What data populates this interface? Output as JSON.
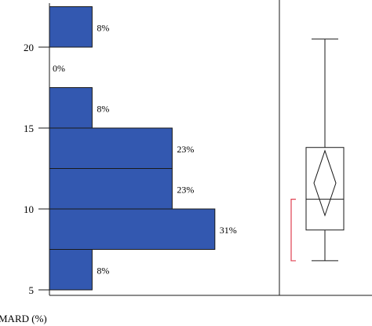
{
  "chart_data": {
    "type": "bar",
    "orientation": "horizontal",
    "ylabel": "MARD (%)",
    "ylim": [
      5,
      22.7
    ],
    "yticks": [
      5,
      10,
      15,
      20
    ],
    "bins": [
      {
        "from": 5,
        "to": 7.5,
        "percent": 8,
        "label": "8%"
      },
      {
        "from": 7.5,
        "to": 10,
        "percent": 31,
        "label": "31%"
      },
      {
        "from": 10,
        "to": 12.5,
        "percent": 23,
        "label": "23%"
      },
      {
        "from": 12.5,
        "to": 15,
        "percent": 23,
        "label": "23%"
      },
      {
        "from": 15,
        "to": 17.5,
        "percent": 8,
        "label": "8%"
      },
      {
        "from": 17.5,
        "to": 20,
        "percent": 0,
        "label": "0%"
      },
      {
        "from": 20,
        "to": 22.5,
        "percent": 8,
        "label": "8%"
      }
    ],
    "boxplot": {
      "whisker_low": 6.8,
      "q1": 8.7,
      "median": 10.6,
      "q3": 13.8,
      "whisker_high": 20.5,
      "mean_diamond": {
        "low": 9.6,
        "center": 11.6,
        "high": 13.6
      },
      "bracket": {
        "low": 6.8,
        "high": 10.6,
        "color": "#e04050"
      }
    },
    "colors": {
      "bar_fill": "#3358b0",
      "bar_stroke": "#1a1a1a",
      "axis": "#1a1a1a"
    }
  }
}
